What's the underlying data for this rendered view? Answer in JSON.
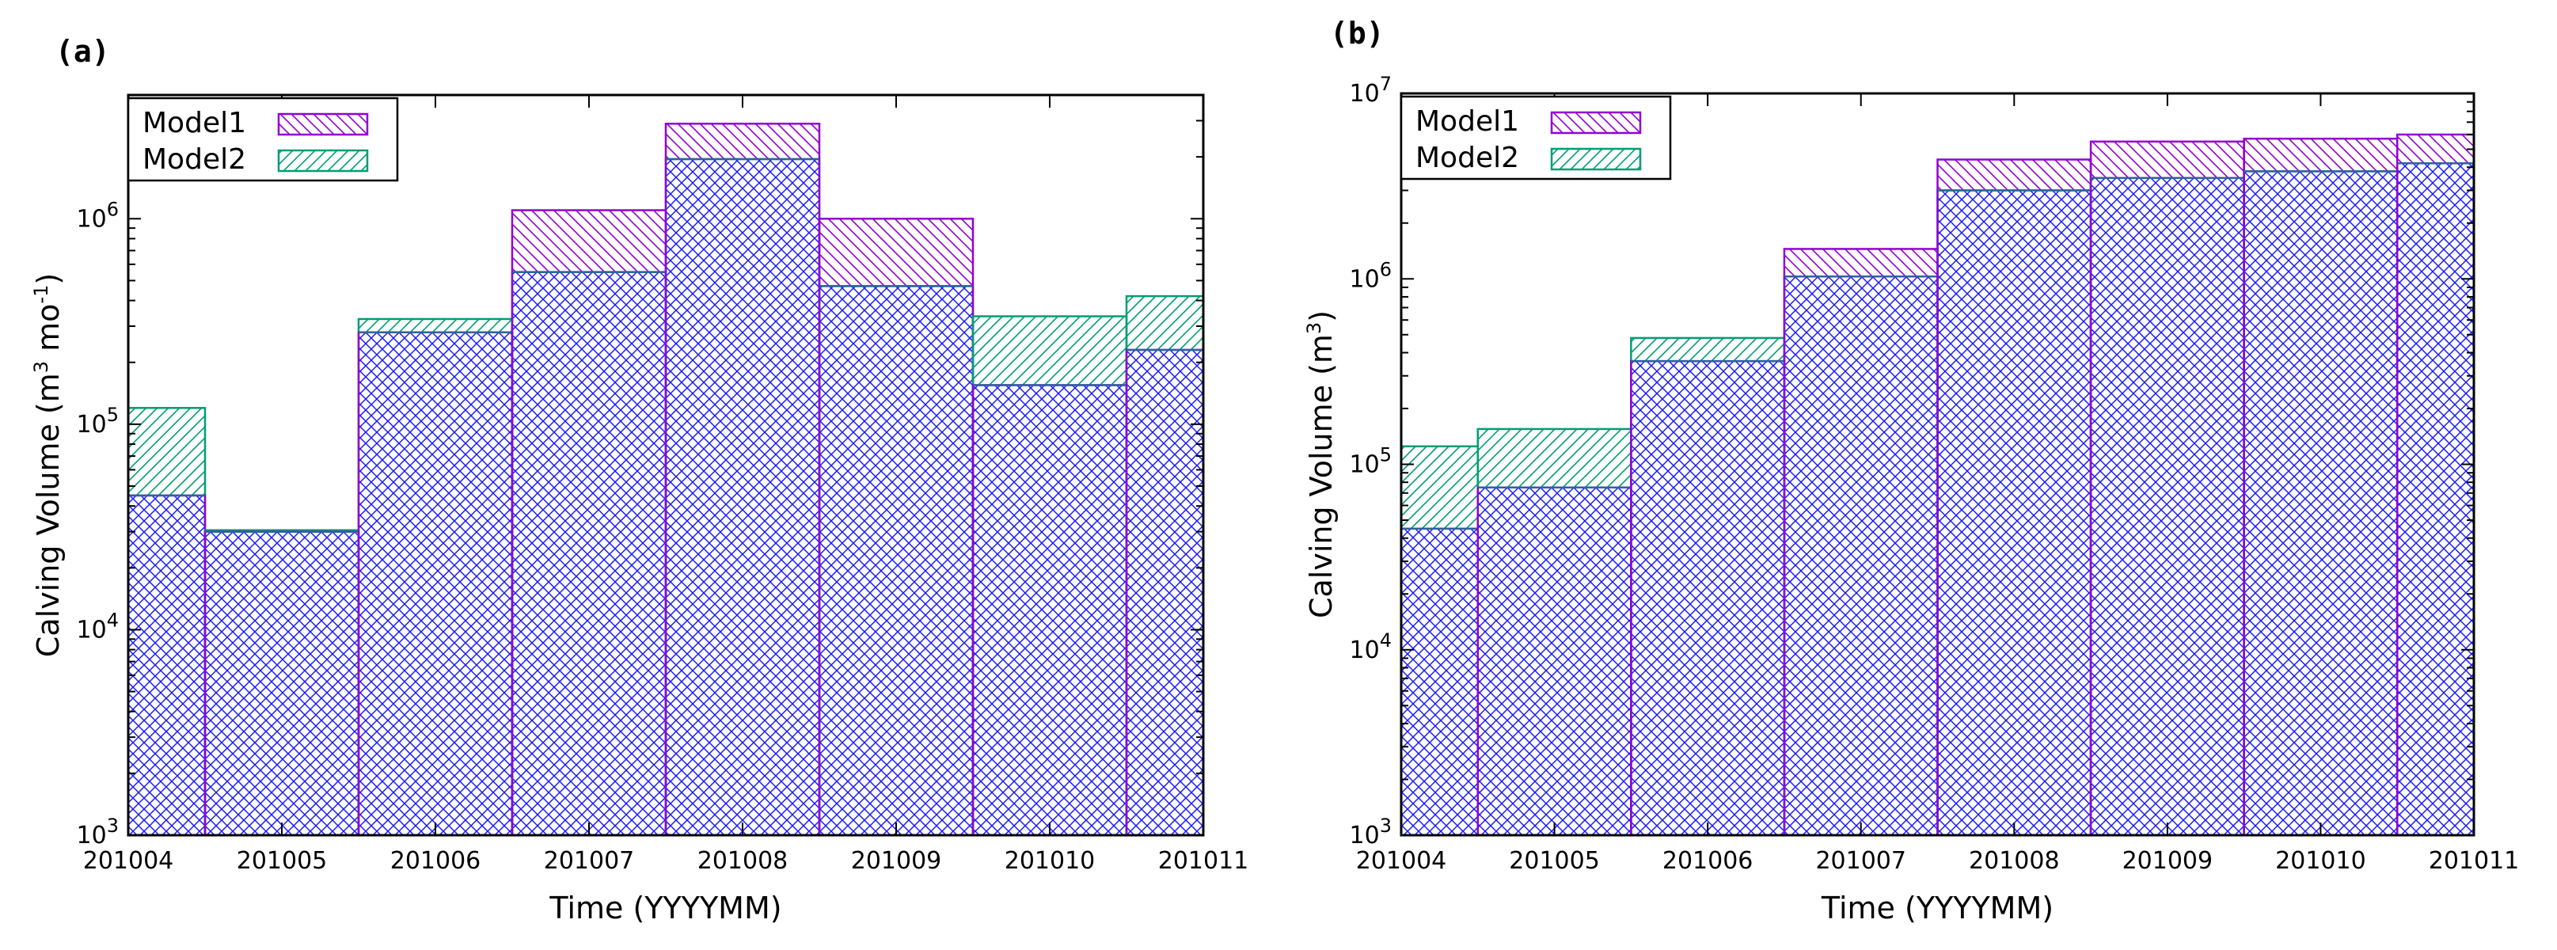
{
  "chart_data": [
    {
      "panel_label": "(a)",
      "type": "bar",
      "subtype": "overlapping-step-bars",
      "yscale": "log",
      "ylim": [
        1000,
        4000000
      ],
      "ylabel": "Calving Volume (m3 mo-1)",
      "ylabel_parts": {
        "base": "Calving Volume (m",
        "sup1": "3",
        "mid": " mo",
        "sup2": "-1",
        "end": ")"
      },
      "xlabel": "Time (YYYYMM)",
      "categories": [
        "201004",
        "201005",
        "201006",
        "201007",
        "201008",
        "201009",
        "201010",
        "201011"
      ],
      "x_range": [
        0,
        7
      ],
      "edges": [
        0,
        0.5,
        1.5,
        2.5,
        3.5,
        4.5,
        5.5,
        6.5,
        7
      ],
      "yticks": [
        {
          "base": "10",
          "exp": "3",
          "value": 1000
        },
        {
          "base": "10",
          "exp": "4",
          "value": 10000
        },
        {
          "base": "10",
          "exp": "5",
          "value": 100000
        },
        {
          "base": "10",
          "exp": "6",
          "value": 1000000
        }
      ],
      "series": [
        {
          "name": "Model1",
          "values": [
            45000,
            30000,
            280000,
            1100000,
            2900000,
            1000000,
            155000,
            230000
          ]
        },
        {
          "name": "Model2",
          "values": [
            120000,
            30500,
            325000,
            550000,
            1950000,
            470000,
            335000,
            420000
          ]
        }
      ],
      "legend_position": "top-left"
    },
    {
      "panel_label": "(b)",
      "type": "bar",
      "subtype": "overlapping-step-bars",
      "yscale": "log",
      "ylim": [
        1000,
        10000000
      ],
      "ylabel": "Calving Volume (m3)",
      "ylabel_parts": {
        "base": "Calving Volume (m",
        "sup1": "3",
        "mid": "",
        "sup2": "",
        "end": ")"
      },
      "xlabel": "Time (YYYYMM)",
      "categories": [
        "201004",
        "201005",
        "201006",
        "201007",
        "201008",
        "201009",
        "201010",
        "201011"
      ],
      "x_range": [
        0,
        7
      ],
      "edges": [
        0,
        0.5,
        1.5,
        2.5,
        3.5,
        4.5,
        5.5,
        6.5,
        7
      ],
      "yticks": [
        {
          "base": "10",
          "exp": "3",
          "value": 1000
        },
        {
          "base": "10",
          "exp": "4",
          "value": 10000
        },
        {
          "base": "10",
          "exp": "5",
          "value": 100000
        },
        {
          "base": "10",
          "exp": "6",
          "value": 1000000
        },
        {
          "base": "10",
          "exp": "7",
          "value": 10000000
        }
      ],
      "series": [
        {
          "name": "Model1",
          "values": [
            45000,
            75000,
            360000,
            1450000,
            4400000,
            5500000,
            5700000,
            6000000
          ]
        },
        {
          "name": "Model2",
          "values": [
            125000,
            155000,
            480000,
            1030000,
            3000000,
            3500000,
            3800000,
            4200000
          ]
        }
      ],
      "legend_position": "top-left"
    }
  ],
  "colors": {
    "model1": "#9400d3",
    "model2": "#009e73",
    "overlap": "#0000ff",
    "axis": "#000000"
  }
}
